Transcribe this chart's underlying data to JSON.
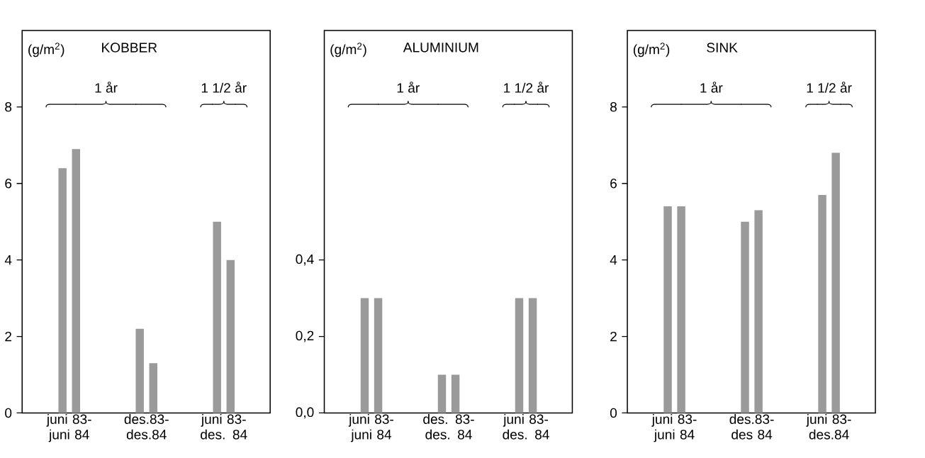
{
  "chart_data": [
    {
      "type": "bar",
      "title": "KOBBER",
      "ylabel": "(g/m$^{2}$)",
      "categories": [
        "juni 83- juni 84",
        "des.83- des.84",
        "juni 83- des. 84"
      ],
      "series": [
        {
          "color": "#9a9a9a",
          "values": [
            6.4,
            2.2,
            5.0
          ]
        },
        {
          "color": "#9a9a9a",
          "values": [
            6.9,
            1.3,
            4.0
          ]
        }
      ],
      "ylim": [
        0,
        10
      ],
      "yticks": [
        0,
        2,
        4,
        6,
        8
      ],
      "annotations": [
        "1 år",
        "1 1/2 år"
      ]
    },
    {
      "type": "bar",
      "title": "ALUMINIUM",
      "ylabel": "(g/m$^{2}$)",
      "categories": [
        "juni 83- juni 84",
        "des. 83- des. 84",
        "juni 83- des. 84"
      ],
      "series": [
        {
          "color": "#9a9a9a",
          "values": [
            0.3,
            0.1,
            0.3
          ]
        },
        {
          "color": "#9a9a9a",
          "values": [
            0.3,
            0.1,
            0.3
          ]
        }
      ],
      "ylim": [
        0,
        1.0
      ],
      "yticks": [
        {
          "value": 0,
          "label": "0,0"
        },
        {
          "value": 0.2,
          "label": "0,2"
        },
        {
          "value": 0.4,
          "label": "0,4"
        }
      ],
      "annotations": [
        "1 år",
        "1 1/2 år"
      ]
    },
    {
      "type": "bar",
      "title": "SINK",
      "ylabel": "(g/m$^{2}$)",
      "categories": [
        "juni 83- juni 84",
        "des.83- des 84",
        "juni 83- des.84"
      ],
      "series": [
        {
          "color": "#9a9a9a",
          "values": [
            5.4,
            5.0,
            5.7
          ]
        },
        {
          "color": "#9a9a9a",
          "values": [
            5.4,
            5.3,
            6.8
          ]
        }
      ],
      "ylim": [
        0,
        10
      ],
      "yticks": [
        0,
        2,
        4,
        6,
        8
      ],
      "annotations": [
        "1 år",
        "1 1/2 år"
      ]
    }
  ]
}
